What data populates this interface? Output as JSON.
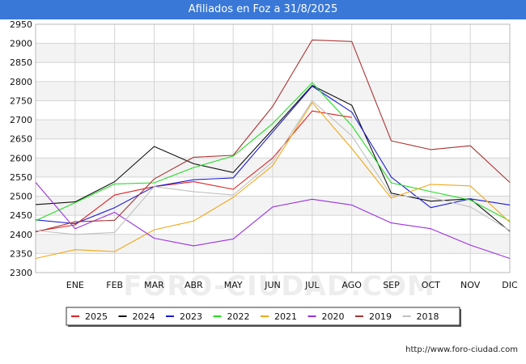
{
  "chart_data": {
    "type": "line",
    "title": "Afiliados en Foz a 31/8/2025",
    "categories": [
      "",
      "ENE",
      "FEB",
      "MAR",
      "ABR",
      "MAY",
      "JUN",
      "JUL",
      "AGO",
      "SEP",
      "OCT",
      "NOV",
      "DIC"
    ],
    "ylim": [
      2300,
      2950
    ],
    "yticks": [
      2300,
      2350,
      2400,
      2450,
      2500,
      2550,
      2600,
      2650,
      2700,
      2750,
      2800,
      2850,
      2900,
      2950
    ],
    "grid": true,
    "legend_position": "bottom",
    "series": [
      {
        "name": "2025",
        "color": "#dd2222",
        "values": [
          2408,
          2425,
          2503,
          2525,
          2538,
          2518,
          2600,
          2723,
          2706,
          null,
          null,
          null,
          null
        ]
      },
      {
        "name": "2024",
        "color": "#111111",
        "values": [
          2478,
          2485,
          2538,
          2630,
          2585,
          2562,
          2675,
          2790,
          2738,
          2508,
          2487,
          2493,
          2408
        ]
      },
      {
        "name": "2023",
        "color": "#1a1ad6",
        "values": [
          2438,
          2428,
          2470,
          2525,
          2543,
          2548,
          2668,
          2788,
          2720,
          2550,
          2470,
          2493,
          2477
        ]
      },
      {
        "name": "2022",
        "color": "#22dd22",
        "values": [
          2436,
          2483,
          2532,
          2535,
          2575,
          2605,
          2690,
          2797,
          2685,
          2535,
          2512,
          2490,
          2435
        ]
      },
      {
        "name": "2021",
        "color": "#f0a818",
        "values": [
          2337,
          2360,
          2355,
          2412,
          2435,
          2497,
          2580,
          2745,
          2625,
          2495,
          2531,
          2527,
          2432
        ]
      },
      {
        "name": "2020",
        "color": "#9b30e0",
        "values": [
          2536,
          2415,
          2458,
          2390,
          2370,
          2388,
          2472,
          2492,
          2477,
          2430,
          2415,
          2372,
          2337
        ]
      },
      {
        "name": "2019",
        "color": "#aa3333",
        "values": [
          2406,
          2433,
          2437,
          2545,
          2602,
          2607,
          2735,
          2909,
          2905,
          2645,
          2622,
          2632,
          2536
        ]
      },
      {
        "name": "2018",
        "color": "#c0c0c0",
        "values": [
          2410,
          2400,
          2405,
          2525,
          2512,
          2503,
          2590,
          2750,
          2658,
          2502,
          2497,
          2472,
          2410
        ]
      }
    ]
  },
  "watermark": "FORO-CIUDAD.COM",
  "source_url": "http://www.foro-ciudad.com"
}
